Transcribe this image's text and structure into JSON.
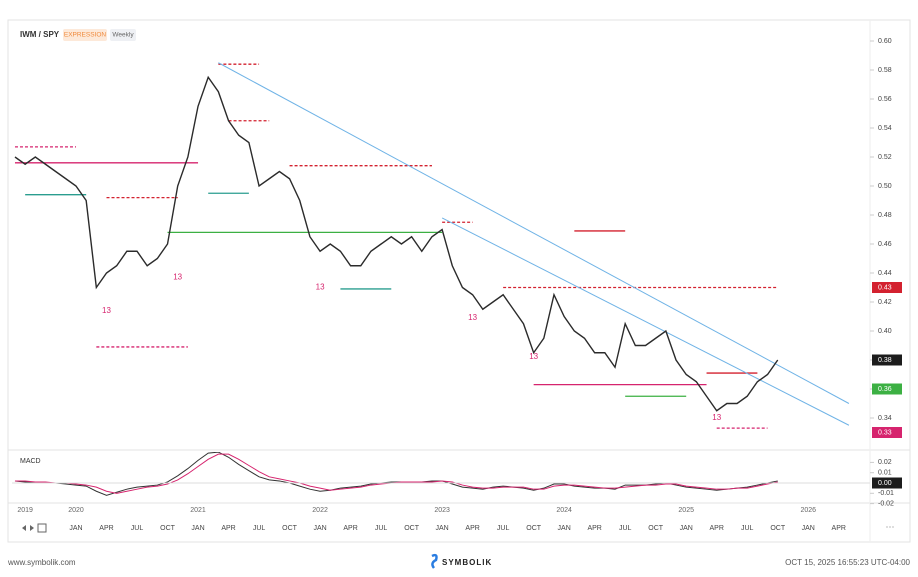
{
  "chart_data": {
    "type": "line",
    "title": "IWM / SPY",
    "badges": [
      "EXPRESSION",
      "Weekly"
    ],
    "x": [
      "2019-07",
      "2019-08",
      "2019-09",
      "2019-10",
      "2019-11",
      "2019-12",
      "2020-01",
      "2020-02",
      "2020-03",
      "2020-04",
      "2020-05",
      "2020-06",
      "2020-07",
      "2020-08",
      "2020-09",
      "2020-10",
      "2020-11",
      "2020-12",
      "2021-01",
      "2021-02",
      "2021-03",
      "2021-04",
      "2021-05",
      "2021-06",
      "2021-07",
      "2021-08",
      "2021-09",
      "2021-10",
      "2021-11",
      "2021-12",
      "2022-01",
      "2022-02",
      "2022-03",
      "2022-04",
      "2022-05",
      "2022-06",
      "2022-07",
      "2022-08",
      "2022-09",
      "2022-10",
      "2022-11",
      "2022-12",
      "2023-01",
      "2023-02",
      "2023-03",
      "2023-04",
      "2023-05",
      "2023-06",
      "2023-07",
      "2023-08",
      "2023-09",
      "2023-10",
      "2023-11",
      "2023-12",
      "2024-01",
      "2024-02",
      "2024-03",
      "2024-04",
      "2024-05",
      "2024-06",
      "2024-07",
      "2024-08",
      "2024-09",
      "2024-10",
      "2024-11",
      "2024-12",
      "2025-01",
      "2025-02",
      "2025-03",
      "2025-04",
      "2025-05",
      "2025-06",
      "2025-07",
      "2025-08",
      "2025-09",
      "2025-10"
    ],
    "series": [
      {
        "name": "IWM / SPY",
        "color": "#2b2b2b",
        "values": [
          0.52,
          0.515,
          0.52,
          0.515,
          0.51,
          0.505,
          0.5,
          0.49,
          0.43,
          0.44,
          0.445,
          0.455,
          0.455,
          0.445,
          0.45,
          0.46,
          0.5,
          0.52,
          0.555,
          0.575,
          0.565,
          0.545,
          0.535,
          0.53,
          0.5,
          0.505,
          0.51,
          0.505,
          0.49,
          0.465,
          0.455,
          0.46,
          0.455,
          0.445,
          0.445,
          0.455,
          0.46,
          0.465,
          0.46,
          0.465,
          0.455,
          0.465,
          0.47,
          0.445,
          0.43,
          0.425,
          0.415,
          0.42,
          0.425,
          0.415,
          0.405,
          0.385,
          0.395,
          0.425,
          0.41,
          0.4,
          0.395,
          0.385,
          0.385,
          0.375,
          0.405,
          0.39,
          0.39,
          0.395,
          0.4,
          0.38,
          0.37,
          0.365,
          0.355,
          0.345,
          0.35,
          0.35,
          0.355,
          0.365,
          0.37,
          0.38
        ]
      }
    ],
    "ylim": [
      0.328,
      0.612
    ],
    "yticks": [
      {
        "value": 0.6,
        "label": "0.60"
      },
      {
        "value": 0.58,
        "label": "0.58"
      },
      {
        "value": 0.56,
        "label": "0.56"
      },
      {
        "value": 0.54,
        "label": "0.54"
      },
      {
        "value": 0.52,
        "label": "0.52"
      },
      {
        "value": 0.5,
        "label": "0.50"
      },
      {
        "value": 0.48,
        "label": "0.48"
      },
      {
        "value": 0.46,
        "label": "0.46"
      },
      {
        "value": 0.44,
        "label": "0.44"
      },
      {
        "value": 0.42,
        "label": "0.42"
      },
      {
        "value": 0.4,
        "label": "0.40"
      },
      {
        "value": 0.38,
        "label": "0.38"
      },
      {
        "value": 0.36,
        "label": "0.36"
      },
      {
        "value": 0.34,
        "label": "0.34"
      }
    ],
    "price_labels": [
      {
        "value": 0.43,
        "color": "#d3212f"
      },
      {
        "value": 0.38,
        "color": "#1c1c1c"
      },
      {
        "value": 0.36,
        "color": "#3cb043"
      },
      {
        "value": 0.33,
        "color": "#d6246e"
      }
    ],
    "trendlines": [
      {
        "x": [
          "2021-03",
          "2026-05"
        ],
        "y": [
          0.585,
          0.35
        ],
        "color": "#6fb3e6"
      },
      {
        "x": [
          "2023-01",
          "2026-05"
        ],
        "y": [
          0.478,
          0.335
        ],
        "color": "#6fb3e6"
      }
    ],
    "levels": [
      {
        "from": "2019-07",
        "to": "2021-01",
        "value": 0.516,
        "color": "#d6246e",
        "dashed": false
      },
      {
        "from": "2019-08",
        "to": "2020-02",
        "value": 0.494,
        "color": "#2a9d8f",
        "dashed": false
      },
      {
        "from": "2019-07",
        "to": "2020-01",
        "value": 0.527,
        "color": "#d6246e",
        "dashed": true
      },
      {
        "from": "2020-04",
        "to": "2020-11",
        "value": 0.492,
        "color": "#d3212f",
        "dashed": true
      },
      {
        "from": "2020-10",
        "to": "2023-01",
        "value": 0.468,
        "color": "#3cb043",
        "dashed": false
      },
      {
        "from": "2021-03",
        "to": "2021-07",
        "value": 0.584,
        "color": "#d3212f",
        "dashed": true
      },
      {
        "from": "2021-04",
        "to": "2021-08",
        "value": 0.545,
        "color": "#d3212f",
        "dashed": true
      },
      {
        "from": "2021-02",
        "to": "2021-06",
        "value": 0.495,
        "color": "#2a9d8f",
        "dashed": false
      },
      {
        "from": "2021-10",
        "to": "2022-12",
        "value": 0.514,
        "color": "#d3212f",
        "dashed": true
      },
      {
        "from": "2023-01",
        "to": "2023-04",
        "value": 0.475,
        "color": "#d3212f",
        "dashed": true
      },
      {
        "from": "2024-02",
        "to": "2024-07",
        "value": 0.469,
        "color": "#d3212f",
        "dashed": false
      },
      {
        "from": "2022-03",
        "to": "2022-08",
        "value": 0.429,
        "color": "#2a9d8f",
        "dashed": false
      },
      {
        "from": "2023-07",
        "to": "2025-10",
        "value": 0.43,
        "color": "#d3212f",
        "dashed": true
      },
      {
        "from": "2020-03",
        "to": "2020-12",
        "value": 0.389,
        "color": "#d6246e",
        "dashed": true
      },
      {
        "from": "2023-10",
        "to": "2025-03",
        "value": 0.363,
        "color": "#d6246e",
        "dashed": false
      },
      {
        "from": "2024-07",
        "to": "2025-01",
        "value": 0.355,
        "color": "#3cb043",
        "dashed": false
      },
      {
        "from": "2025-04",
        "to": "2025-09",
        "value": 0.333,
        "color": "#d6246e",
        "dashed": true
      },
      {
        "from": "2025-03",
        "to": "2025-08",
        "value": 0.371,
        "color": "#d3212f",
        "dashed": false
      }
    ],
    "annotations": [
      {
        "x": "2020-04",
        "y": 0.414,
        "text": "13"
      },
      {
        "x": "2020-11",
        "y": 0.437,
        "text": "13"
      },
      {
        "x": "2022-01",
        "y": 0.43,
        "text": "13"
      },
      {
        "x": "2023-04",
        "y": 0.409,
        "text": "13"
      },
      {
        "x": "2023-10",
        "y": 0.382,
        "text": "13"
      },
      {
        "x": "2025-04",
        "y": 0.34,
        "text": "13"
      }
    ],
    "xticks_years": [
      {
        "value": "2019-08",
        "label": "2019"
      },
      {
        "value": "2020-01",
        "label": "2020"
      },
      {
        "value": "2021-01",
        "label": "2021"
      },
      {
        "value": "2022-01",
        "label": "2022"
      },
      {
        "value": "2023-01",
        "label": "2023"
      },
      {
        "value": "2024-01",
        "label": "2024"
      },
      {
        "value": "2025-01",
        "label": "2025"
      },
      {
        "value": "2026-01",
        "label": "2026"
      }
    ],
    "xticks_months": [
      {
        "value": "2020-01",
        "label": "JAN"
      },
      {
        "value": "2020-04",
        "label": "APR"
      },
      {
        "value": "2020-07",
        "label": "JUL"
      },
      {
        "value": "2020-10",
        "label": "OCT"
      },
      {
        "value": "2021-01",
        "label": "JAN"
      },
      {
        "value": "2021-04",
        "label": "APR"
      },
      {
        "value": "2021-07",
        "label": "JUL"
      },
      {
        "value": "2021-10",
        "label": "OCT"
      },
      {
        "value": "2022-01",
        "label": "JAN"
      },
      {
        "value": "2022-04",
        "label": "APR"
      },
      {
        "value": "2022-07",
        "label": "JUL"
      },
      {
        "value": "2022-10",
        "label": "OCT"
      },
      {
        "value": "2023-01",
        "label": "JAN"
      },
      {
        "value": "2023-04",
        "label": "APR"
      },
      {
        "value": "2023-07",
        "label": "JUL"
      },
      {
        "value": "2023-10",
        "label": "OCT"
      },
      {
        "value": "2024-01",
        "label": "JAN"
      },
      {
        "value": "2024-04",
        "label": "APR"
      },
      {
        "value": "2024-07",
        "label": "JUL"
      },
      {
        "value": "2024-10",
        "label": "OCT"
      },
      {
        "value": "2025-01",
        "label": "JAN"
      },
      {
        "value": "2025-04",
        "label": "APR"
      },
      {
        "value": "2025-07",
        "label": "JUL"
      },
      {
        "value": "2025-10",
        "label": "OCT"
      },
      {
        "value": "2026-01",
        "label": "JAN"
      },
      {
        "value": "2026-04",
        "label": "APR"
      }
    ],
    "macd": {
      "title": "MACD",
      "ylim": [
        -0.023,
        0.03
      ],
      "yticks": [
        {
          "value": 0.02,
          "label": "0.02"
        },
        {
          "value": 0.01,
          "label": "0.01"
        },
        {
          "value": -0.01,
          "label": "-0.01"
        },
        {
          "value": -0.02,
          "label": "-0.02"
        }
      ],
      "current": {
        "value": 0,
        "label": "0.00"
      },
      "series": [
        {
          "name": "MACD",
          "color": "#333333",
          "values": [
            0.002,
            0.001,
            0.001,
            0,
            0,
            -0.001,
            -0.002,
            -0.003,
            -0.008,
            -0.012,
            -0.009,
            -0.006,
            -0.004,
            -0.003,
            -0.002,
            0.001,
            0.007,
            0.014,
            0.022,
            0.029,
            0.03,
            0.025,
            0.018,
            0.012,
            0.006,
            0.003,
            0.002,
            0,
            -0.003,
            -0.006,
            -0.008,
            -0.007,
            -0.005,
            -0.004,
            -0.003,
            -0.001,
            0,
            0.001,
            0.001,
            0.001,
            0.001,
            0.002,
            0.002,
            -0.001,
            -0.004,
            -0.005,
            -0.006,
            -0.004,
            -0.003,
            -0.004,
            -0.005,
            -0.007,
            -0.005,
            -0.001,
            -0.001,
            -0.003,
            -0.004,
            -0.005,
            -0.005,
            -0.006,
            -0.002,
            -0.002,
            -0.002,
            -0.001,
            0,
            -0.002,
            -0.004,
            -0.005,
            -0.006,
            -0.007,
            -0.006,
            -0.005,
            -0.004,
            -0.002,
            0,
            0.002
          ]
        },
        {
          "name": "Signal",
          "color": "#d6246e",
          "values": [
            0.002,
            0.002,
            0.001,
            0.001,
            0,
            0,
            -0.001,
            -0.002,
            -0.004,
            -0.008,
            -0.01,
            -0.008,
            -0.006,
            -0.004,
            -0.003,
            -0.001,
            0.003,
            0.009,
            0.016,
            0.023,
            0.028,
            0.028,
            0.023,
            0.017,
            0.011,
            0.006,
            0.004,
            0.002,
            0,
            -0.003,
            -0.005,
            -0.007,
            -0.006,
            -0.005,
            -0.004,
            -0.002,
            -0.001,
            0,
            0.001,
            0.001,
            0.001,
            0.001,
            0.002,
            0.001,
            -0.002,
            -0.004,
            -0.005,
            -0.005,
            -0.004,
            -0.004,
            -0.004,
            -0.006,
            -0.006,
            -0.003,
            -0.002,
            -0.002,
            -0.003,
            -0.004,
            -0.005,
            -0.005,
            -0.004,
            -0.003,
            -0.002,
            -0.002,
            -0.001,
            -0.001,
            -0.003,
            -0.004,
            -0.005,
            -0.006,
            -0.006,
            -0.005,
            -0.005,
            -0.003,
            -0.001,
            0.001
          ]
        }
      ]
    }
  },
  "footer": {
    "site": "www.symbolik.com",
    "brand": "SYMBOLIK",
    "timestamp": "OCT 15, 2025 16:55:23 UTC-04:00"
  }
}
